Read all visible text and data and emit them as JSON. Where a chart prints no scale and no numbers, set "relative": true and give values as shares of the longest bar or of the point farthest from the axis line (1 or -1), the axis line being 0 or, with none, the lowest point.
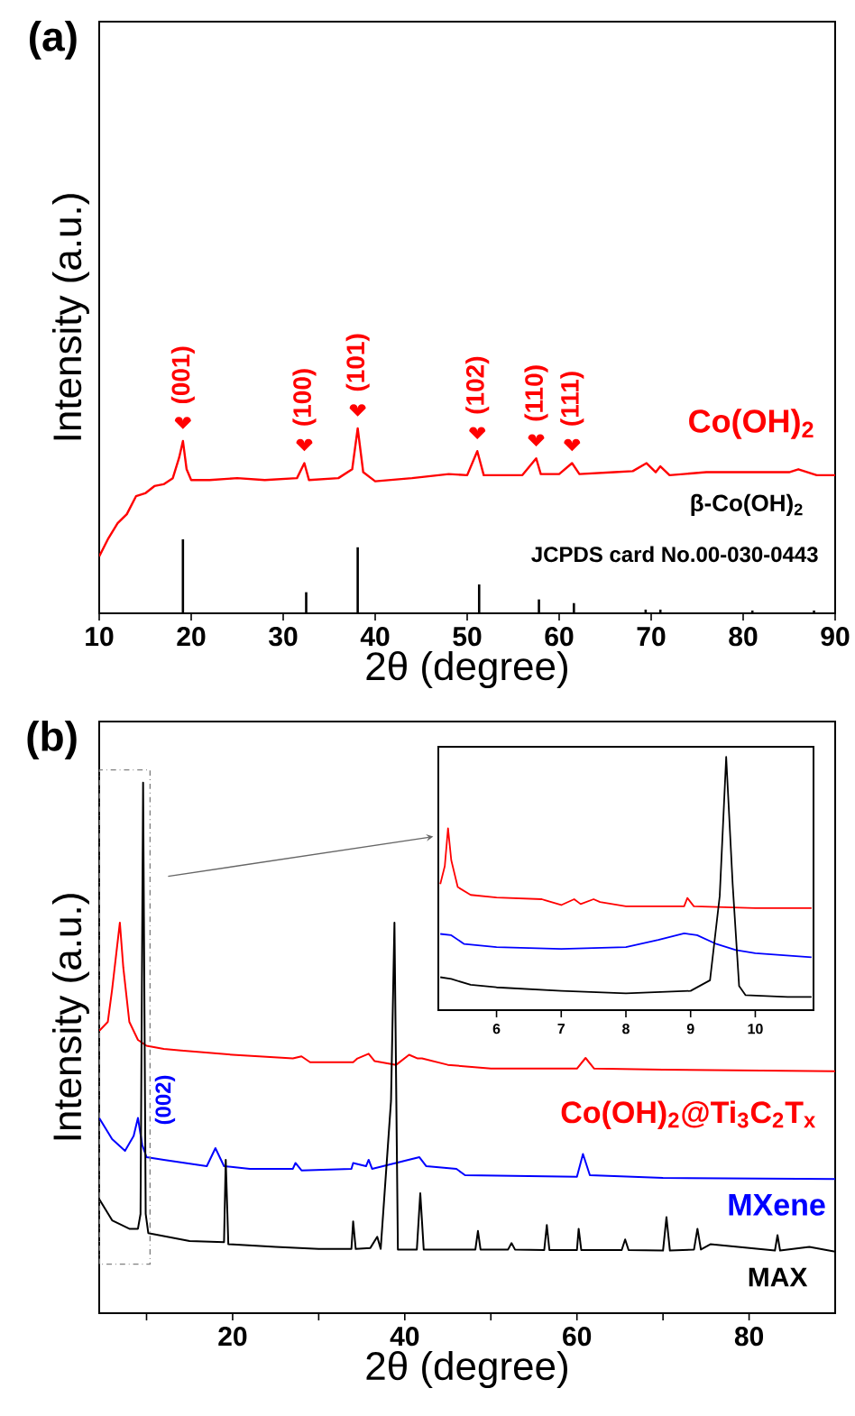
{
  "chart_data": [
    {
      "type": "line",
      "title": "(a)",
      "xlabel": "2θ (degree)",
      "ylabel": "Intensity (a.u.)",
      "relative": true,
      "xlim": [
        10,
        90
      ],
      "xticks": [
        10,
        20,
        30,
        40,
        50,
        60,
        70,
        80,
        90
      ],
      "series": [
        {
          "name": "Co(OH)$_{2}$",
          "color": "#ff0000",
          "x": [
            10,
            11,
            12,
            13,
            14,
            15,
            16,
            17,
            18,
            18.7,
            19.1,
            19.5,
            20,
            22,
            25,
            28,
            31.5,
            32.3,
            32.8,
            36,
            37.5,
            38.1,
            38.7,
            40,
            44,
            48,
            50,
            51.1,
            51.8,
            56,
            57.5,
            58,
            60,
            61.4,
            62.2,
            66,
            68,
            69.5,
            70.5,
            71,
            72,
            76,
            80,
            83,
            85,
            86,
            88,
            90
          ],
          "values": [
            0.308,
            0.406,
            0.487,
            0.536,
            0.633,
            0.649,
            0.688,
            0.698,
            0.731,
            0.844,
            0.932,
            0.779,
            0.721,
            0.721,
            0.731,
            0.721,
            0.731,
            0.812,
            0.721,
            0.731,
            0.779,
            1.0,
            0.763,
            0.714,
            0.731,
            0.753,
            0.747,
            0.877,
            0.747,
            0.747,
            0.838,
            0.753,
            0.753,
            0.812,
            0.753,
            0.763,
            0.769,
            0.812,
            0.763,
            0.795,
            0.747,
            0.763,
            0.763,
            0.763,
            0.763,
            0.779,
            0.747,
            0.747
          ]
        },
        {
          "name": "β-Co(OH)$_{2}$",
          "type": "bar",
          "color": "#000000",
          "x": [
            19.1,
            32.5,
            38.1,
            51.3,
            57.8,
            61.6,
            69.4,
            71.0,
            81,
            87.7
          ],
          "values": [
            0.4,
            0.114,
            0.357,
            0.156,
            0.075,
            0.055,
            0.02,
            0.02,
            0.015,
            0.015
          ]
        }
      ],
      "annotations": [
        {
          "text": "(001)",
          "x": 19.1,
          "y": 0.932
        },
        {
          "text": "(100)",
          "x": 32.3,
          "y": 0.812
        },
        {
          "text": "(101)",
          "x": 38.1,
          "y": 1.0
        },
        {
          "text": "(102)",
          "x": 51.1,
          "y": 0.877
        },
        {
          "text": "(110)",
          "x": 57.5,
          "y": 0.838
        },
        {
          "text": "(111)",
          "x": 61.4,
          "y": 0.812
        },
        "JCPDS card No.00-030-0443"
      ]
    },
    {
      "type": "line",
      "title": "(b)",
      "xlabel": "2θ (degree)",
      "ylabel": "Intensity (a.u.)",
      "relative": true,
      "xlim": [
        4.5,
        90
      ],
      "xticks": [
        {
          "value": 10,
          "label": null
        },
        20,
        {
          "value": 30,
          "label": null
        },
        40,
        {
          "value": 50,
          "label": null
        },
        60,
        {
          "value": 70,
          "label": null
        },
        80
      ],
      "series": [
        {
          "name": "Co(OH)$_{2}$@Ti$_{3}$C$_{2}$T$_{x}$",
          "color": "#ff0000",
          "x": [
            4.5,
            5.5,
            6.0,
            6.5,
            6.9,
            7.3,
            8,
            9,
            10,
            12,
            14,
            20,
            27,
            28,
            29,
            34,
            34.5,
            35.8,
            36.5,
            39,
            40.5,
            41.5,
            42,
            45,
            50,
            60,
            61,
            62,
            70,
            90
          ],
          "values": [
            0.532,
            0.549,
            0.61,
            0.68,
            0.736,
            0.651,
            0.549,
            0.515,
            0.504,
            0.498,
            0.495,
            0.487,
            0.48,
            0.484,
            0.473,
            0.473,
            0.48,
            0.489,
            0.475,
            0.468,
            0.487,
            0.48,
            0.48,
            0.468,
            0.461,
            0.461,
            0.481,
            0.461,
            0.459,
            0.456
          ]
        },
        {
          "name": "MXene",
          "color": "#0000ff",
          "x": [
            4.5,
            6,
            7.5,
            8.5,
            9,
            9.5,
            10,
            12,
            17,
            18,
            19,
            22,
            27,
            27.3,
            28,
            33.8,
            34,
            35.5,
            35.8,
            36.2,
            41.7,
            42.5,
            46,
            47,
            60,
            60.7,
            61.5,
            70,
            90
          ],
          "values": [
            0.368,
            0.328,
            0.306,
            0.334,
            0.368,
            0.317,
            0.294,
            0.289,
            0.277,
            0.311,
            0.277,
            0.272,
            0.272,
            0.283,
            0.269,
            0.272,
            0.283,
            0.277,
            0.289,
            0.272,
            0.294,
            0.277,
            0.272,
            0.26,
            0.257,
            0.3,
            0.26,
            0.255,
            0.253
          ]
        },
        {
          "name": "MAX",
          "color": "#000000",
          "x": [
            4.5,
            6,
            8,
            9,
            9.3,
            9.6,
            9.9,
            10.2,
            15,
            19,
            19.2,
            19.5,
            25,
            30,
            33.8,
            34,
            34.3,
            36,
            36.8,
            37.2,
            38.4,
            38.8,
            39.2,
            41.4,
            41.8,
            42.2,
            48.2,
            48.5,
            48.8,
            52,
            52.4,
            52.8,
            56.2,
            56.5,
            56.8,
            60,
            60.2,
            60.5,
            65.2,
            65.6,
            66,
            70,
            70.4,
            70.8,
            73.6,
            74,
            74.4,
            75.5,
            83,
            83.3,
            83.6,
            87,
            90
          ],
          "values": [
            0.215,
            0.175,
            0.159,
            0.159,
            0.187,
            1.0,
            0.187,
            0.151,
            0.136,
            0.134,
            0.289,
            0.13,
            0.125,
            0.121,
            0.121,
            0.173,
            0.121,
            0.123,
            0.144,
            0.121,
            0.4,
            0.736,
            0.12,
            0.12,
            0.226,
            0.12,
            0.12,
            0.155,
            0.12,
            0.12,
            0.132,
            0.12,
            0.119,
            0.166,
            0.119,
            0.119,
            0.159,
            0.119,
            0.119,
            0.139,
            0.119,
            0.118,
            0.181,
            0.118,
            0.12,
            0.159,
            0.12,
            0.13,
            0.118,
            0.147,
            0.118,
            0.125,
            0.116
          ]
        }
      ],
      "annotations": [
        {
          "text": "(002)",
          "x": 9,
          "y": 0.368
        }
      ]
    },
    {
      "type": "line",
      "relative": true,
      "xlim": [
        5.1,
        10.9
      ],
      "xticks": [
        6,
        7,
        8,
        9,
        10
      ],
      "series": [
        {
          "color": "#ff0000",
          "x": [
            5.13,
            5.2,
            5.25,
            5.3,
            5.4,
            5.6,
            6,
            6.7,
            6.75,
            7,
            7.2,
            7.3,
            7.5,
            7.6,
            8,
            8.9,
            8.95,
            9.05,
            10,
            10.87
          ],
          "values": [
            0.498,
            0.569,
            0.718,
            0.592,
            0.486,
            0.455,
            0.445,
            0.438,
            0.434,
            0.415,
            0.438,
            0.419,
            0.438,
            0.427,
            0.41,
            0.41,
            0.443,
            0.41,
            0.403,
            0.403
          ]
        },
        {
          "color": "#0000ff",
          "x": [
            5.13,
            5.3,
            5.5,
            6,
            7,
            8,
            8.5,
            8.9,
            9.1,
            9.4,
            9.7,
            10,
            10.87
          ],
          "values": [
            0.301,
            0.296,
            0.261,
            0.249,
            0.242,
            0.249,
            0.277,
            0.303,
            0.296,
            0.261,
            0.237,
            0.225,
            0.209
          ]
        },
        {
          "color": "#000000",
          "x": [
            5.13,
            5.3,
            5.6,
            6,
            7,
            8,
            9,
            9.3,
            9.45,
            9.55,
            9.65,
            9.75,
            9.85,
            10.5,
            10.87
          ],
          "values": [
            0.13,
            0.123,
            0.1,
            0.09,
            0.076,
            0.066,
            0.076,
            0.118,
            0.45,
            1.0,
            0.498,
            0.095,
            0.059,
            0.052,
            0.052
          ]
        }
      ]
    }
  ]
}
